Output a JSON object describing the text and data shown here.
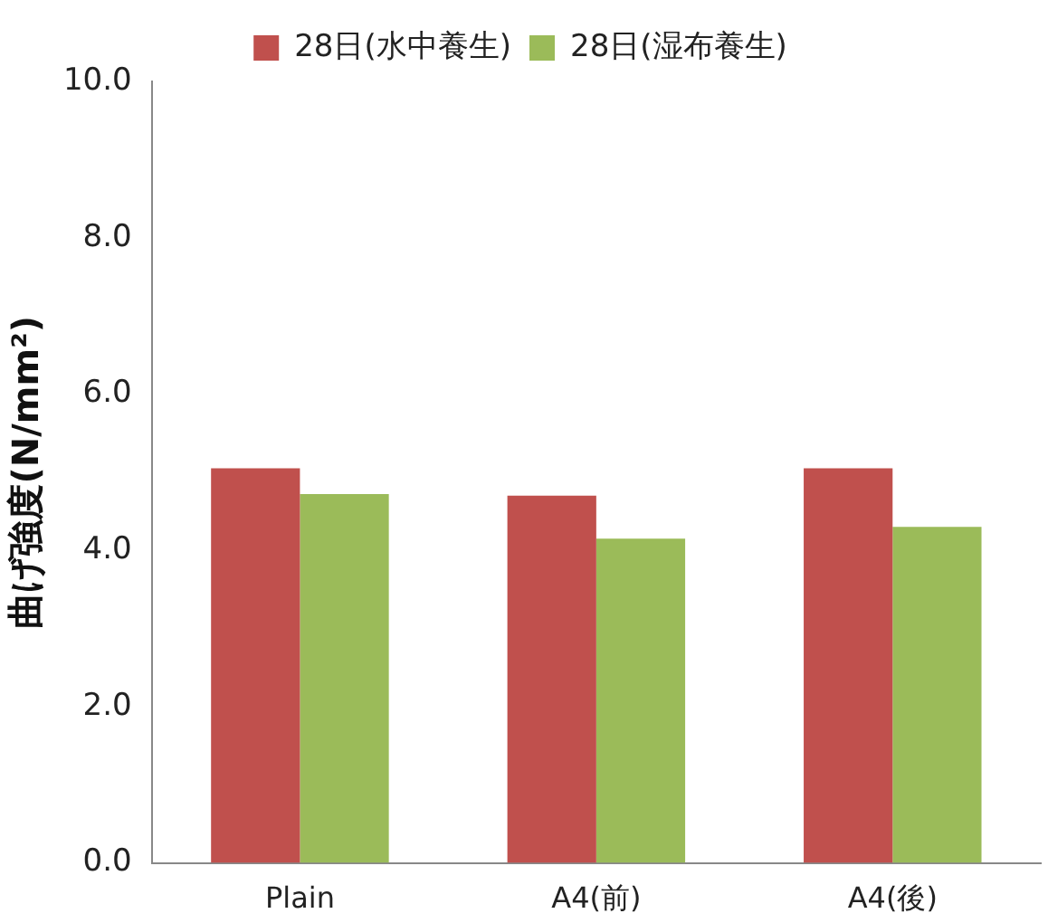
{
  "chart_data": {
    "type": "bar",
    "ylabel": "曲げ強度(N/mm²)",
    "categories": [
      "Plain",
      "A4(前)",
      "A4(後)"
    ],
    "series": [
      {
        "name": "28日(水中養生)",
        "color": "#c0504d",
        "values": [
          5.05,
          4.7,
          5.05
        ]
      },
      {
        "name": "28日(湿布養生)",
        "color": "#9bbb59",
        "values": [
          4.72,
          4.15,
          4.3
        ]
      }
    ],
    "ylim": [
      0,
      10
    ],
    "yticks": [
      {
        "value": 0,
        "label": "0.0"
      },
      {
        "value": 2,
        "label": "2.0"
      },
      {
        "value": 4,
        "label": "4.0"
      },
      {
        "value": 6,
        "label": "6.0"
      },
      {
        "value": 8,
        "label": "8.0"
      },
      {
        "value": 10,
        "label": "10.0"
      }
    ],
    "grid": false,
    "legend": "top"
  }
}
